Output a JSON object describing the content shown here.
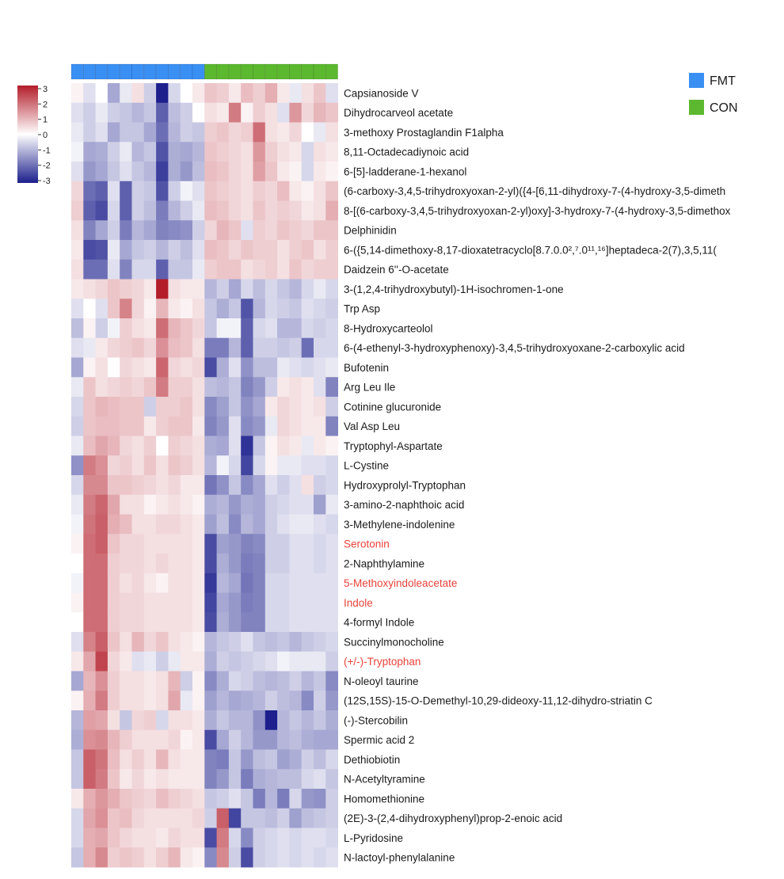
{
  "chart_data": {
    "type": "heatmap",
    "groups": [
      {
        "name": "FMT",
        "color": "#3a8ff3",
        "count": 11
      },
      {
        "name": "CON",
        "color": "#5cb82e",
        "count": 11
      }
    ],
    "color_scale": {
      "min": -3,
      "max": 3,
      "ticks": [
        "3",
        "2",
        "1",
        "0",
        "-1",
        "-2",
        "-3"
      ],
      "low_color": "#1c1f8c",
      "mid_color": "#ffffff",
      "high_color": "#b31d2a"
    },
    "highlight_color": "#e8433a",
    "rows": [
      {
        "label": "Capsianoside V",
        "highlight": false,
        "values": [
          0.1,
          -0.3,
          0.0,
          -1.0,
          -0.2,
          0.3,
          -0.5,
          -3.0,
          -0.4,
          0.0,
          0.2,
          0.6,
          0.5,
          0.2,
          0.7,
          0.5,
          0.9,
          0.2,
          -0.2,
          0.3,
          0.6,
          -0.3
        ]
      },
      {
        "label": "Dihydrocarveol acetate",
        "highlight": false,
        "values": [
          -0.3,
          -0.5,
          -0.2,
          -0.5,
          -0.6,
          -0.8,
          -0.6,
          -2.0,
          -0.7,
          -0.5,
          0.0,
          0.3,
          0.2,
          1.6,
          0.1,
          0.5,
          0.3,
          -0.3,
          1.2,
          0.4,
          0.8,
          0.6
        ]
      },
      {
        "label": "3-methoxy Prostaglandin F1alpha",
        "highlight": false,
        "values": [
          -0.2,
          -0.5,
          -0.3,
          -1.0,
          -0.6,
          -0.6,
          -1.0,
          -1.8,
          -0.8,
          -0.5,
          -0.6,
          0.5,
          0.6,
          0.4,
          0.5,
          1.8,
          0.3,
          0.2,
          0.4,
          0.0,
          -0.2,
          0.3
        ]
      },
      {
        "label": "8,11-Octadecadiynoic acid",
        "highlight": false,
        "values": [
          -0.1,
          -1.0,
          -0.9,
          -0.5,
          -0.2,
          -0.8,
          -0.6,
          -2.2,
          -0.9,
          -1.0,
          -0.8,
          0.6,
          0.5,
          0.4,
          0.3,
          1.2,
          0.5,
          0.3,
          0.2,
          -0.4,
          0.3,
          0.2
        ]
      },
      {
        "label": "6-[5]-ladderane-1-hexanol",
        "highlight": false,
        "values": [
          -0.3,
          -1.2,
          -1.0,
          -0.6,
          -0.3,
          -0.6,
          -0.8,
          -2.5,
          -0.9,
          -1.2,
          -0.7,
          0.7,
          0.6,
          0.4,
          0.3,
          1.1,
          0.6,
          0.2,
          0.1,
          -0.4,
          0.2,
          0.1
        ]
      },
      {
        "label": "(6-carboxy-3,4,5-trihydroxyoxan-2-yl)({4-[6,11-dihydroxy-7-(4-hydroxy-3,5-dimeth",
        "highlight": false,
        "values": [
          0.4,
          -1.8,
          -2.0,
          -0.3,
          -2.0,
          -0.5,
          -0.6,
          -2.2,
          -0.5,
          -0.1,
          -0.3,
          0.6,
          0.5,
          0.4,
          0.3,
          0.5,
          0.4,
          0.7,
          0.2,
          0.1,
          0.3,
          0.6
        ]
      },
      {
        "label": "8-[(6-carboxy-3,4,5-trihydroxyoxan-2-yl)oxy]-3-hydroxy-7-(4-hydroxy-3,5-dimethox",
        "highlight": false,
        "values": [
          0.5,
          -2.0,
          -2.3,
          -0.4,
          -2.0,
          -0.5,
          -0.7,
          -1.6,
          -0.8,
          -0.5,
          -0.2,
          0.7,
          0.6,
          0.4,
          0.3,
          0.6,
          0.4,
          0.5,
          0.4,
          0.2,
          0.3,
          0.9
        ]
      },
      {
        "label": "Delphinidin",
        "highlight": false,
        "values": [
          0.3,
          -1.5,
          -1.0,
          -0.5,
          -1.6,
          -0.8,
          -1.0,
          -1.5,
          -1.4,
          -1.3,
          -0.5,
          0.4,
          0.8,
          0.6,
          -0.3,
          0.5,
          0.4,
          0.6,
          0.5,
          0.4,
          0.6,
          0.6
        ]
      },
      {
        "label": "6-({5,14-dimethoxy-8,17-dioxatetracyclo[8.7.0.0²,⁷.0¹¹,¹⁶]heptadeca-2(7),3,5,11(",
        "highlight": false,
        "values": [
          0.2,
          -2.3,
          -2.2,
          -0.2,
          -1.0,
          -0.6,
          -0.5,
          -0.8,
          -0.5,
          -0.7,
          -0.3,
          0.7,
          0.6,
          0.4,
          0.6,
          0.5,
          0.5,
          0.3,
          0.5,
          0.6,
          0.3,
          0.5
        ]
      },
      {
        "label": "Daidzein 6''-O-acetate",
        "highlight": false,
        "values": [
          0.3,
          -1.8,
          -1.8,
          -0.3,
          -1.5,
          -0.4,
          -0.4,
          -2.0,
          -0.6,
          -0.6,
          -0.2,
          0.5,
          0.6,
          0.6,
          0.3,
          0.4,
          0.5,
          0.3,
          0.6,
          0.4,
          0.5,
          0.5
        ]
      },
      {
        "label": "3-(1,2,4-trihydroxybutyl)-1H-isochromen-1-one",
        "highlight": false,
        "values": [
          0.2,
          0.3,
          0.4,
          0.6,
          0.5,
          0.4,
          0.2,
          3.0,
          0.3,
          0.2,
          0.2,
          -0.8,
          -0.5,
          -1.0,
          -0.4,
          -0.7,
          -0.4,
          -0.6,
          -0.8,
          -0.4,
          -0.2,
          -0.4
        ]
      },
      {
        "label": "Trp Asp",
        "highlight": false,
        "values": [
          -0.3,
          0.0,
          -0.3,
          0.6,
          1.5,
          0.4,
          0.1,
          0.8,
          0.2,
          0.1,
          0.3,
          -0.6,
          -0.9,
          -0.6,
          -2.2,
          -0.8,
          -0.4,
          -0.5,
          -0.6,
          -0.3,
          -0.4,
          -0.5
        ]
      },
      {
        "label": "8-Hydroxycarteolol",
        "highlight": false,
        "values": [
          -0.7,
          0.1,
          -0.5,
          -0.1,
          0.5,
          0.3,
          0.2,
          1.8,
          0.8,
          0.6,
          0.4,
          -0.6,
          -0.1,
          -0.1,
          -2.0,
          -0.4,
          -0.3,
          -0.8,
          -0.8,
          -0.4,
          -0.5,
          -0.4
        ]
      },
      {
        "label": "6-(4-ethenyl-3-hydroxyphenoxy)-3,4,5-trihydroxyoxane-2-carboxylic acid",
        "highlight": false,
        "values": [
          -0.3,
          -0.2,
          0.2,
          0.4,
          0.5,
          0.6,
          0.4,
          1.3,
          0.7,
          0.6,
          0.3,
          -1.6,
          -1.6,
          -0.8,
          -2.0,
          -0.5,
          -0.5,
          -0.6,
          -0.5,
          -1.8,
          -0.4,
          -0.4
        ]
      },
      {
        "label": "Bufotenin",
        "highlight": false,
        "values": [
          -1.0,
          0.1,
          0.3,
          0.0,
          0.4,
          0.3,
          0.2,
          1.9,
          0.4,
          0.3,
          0.4,
          -2.3,
          -0.9,
          -0.3,
          -1.3,
          -0.7,
          -0.7,
          -0.2,
          -0.3,
          -0.4,
          -0.3,
          -0.2
        ]
      },
      {
        "label": "Arg Leu Ile",
        "highlight": false,
        "values": [
          -0.2,
          0.6,
          0.3,
          0.4,
          0.5,
          0.4,
          0.6,
          1.6,
          0.5,
          0.5,
          0.3,
          -0.7,
          -0.8,
          -0.6,
          -1.5,
          -1.2,
          -0.5,
          0.2,
          0.3,
          0.2,
          -0.3,
          -1.5
        ]
      },
      {
        "label": "Cotinine glucuronide",
        "highlight": false,
        "values": [
          -0.4,
          0.6,
          0.8,
          0.7,
          0.6,
          0.6,
          -0.5,
          0.5,
          0.5,
          0.6,
          0.3,
          -1.4,
          -1.1,
          -0.6,
          -1.3,
          -1.0,
          0.2,
          0.4,
          0.3,
          0.2,
          0.3,
          -0.5
        ]
      },
      {
        "label": "Val Asp Leu",
        "highlight": false,
        "values": [
          -0.5,
          0.6,
          0.7,
          0.7,
          0.6,
          0.6,
          0.2,
          0.5,
          0.6,
          0.6,
          0.2,
          -1.5,
          -1.2,
          -0.3,
          -1.4,
          -1.2,
          -0.2,
          0.4,
          0.3,
          0.2,
          0.2,
          -1.5
        ]
      },
      {
        "label": "Tryptophyl-Aspartate",
        "highlight": false,
        "values": [
          -0.2,
          0.7,
          1.0,
          0.8,
          0.4,
          0.3,
          0.5,
          0.0,
          0.5,
          0.4,
          0.3,
          -0.9,
          -1.0,
          -0.3,
          -2.7,
          -0.6,
          0.1,
          0.3,
          0.2,
          -0.2,
          0.2,
          0.1
        ]
      },
      {
        "label": "L-Cystine",
        "highlight": false,
        "values": [
          -1.3,
          1.6,
          1.3,
          0.4,
          0.5,
          0.3,
          0.6,
          0.3,
          0.6,
          0.5,
          0.3,
          -0.8,
          -0.1,
          -0.4,
          -2.4,
          -0.4,
          0.1,
          -0.2,
          -0.2,
          -0.3,
          -0.3,
          -0.4
        ]
      },
      {
        "label": "Hydroxyprolyl-Tryptophan",
        "highlight": false,
        "values": [
          -0.4,
          1.4,
          1.4,
          0.6,
          0.6,
          0.5,
          0.4,
          0.3,
          0.4,
          0.2,
          0.2,
          -1.7,
          -1.3,
          -0.6,
          -1.4,
          -1.0,
          -0.3,
          -0.5,
          -0.3,
          0.3,
          -0.5,
          -0.4
        ]
      },
      {
        "label": "3-amino-2-naphthoic acid",
        "highlight": false,
        "values": [
          -0.2,
          1.6,
          1.9,
          1.0,
          0.3,
          0.3,
          0.1,
          0.2,
          0.3,
          0.2,
          0.1,
          -0.9,
          -0.8,
          -1.2,
          -0.9,
          -1.0,
          -0.5,
          -0.4,
          -0.3,
          -0.3,
          -1.1,
          -0.2
        ]
      },
      {
        "label": "3-Methylene-indolenine",
        "highlight": false,
        "values": [
          -0.1,
          1.7,
          2.0,
          0.9,
          0.7,
          0.3,
          0.3,
          0.4,
          0.4,
          0.3,
          0.2,
          -1.1,
          -0.7,
          -1.4,
          -0.8,
          -1.0,
          -0.5,
          -0.3,
          -0.2,
          -0.2,
          -0.3,
          -0.4
        ]
      },
      {
        "label": "Serotonin",
        "highlight": true,
        "values": [
          0.1,
          1.8,
          2.0,
          0.6,
          0.4,
          0.4,
          0.3,
          0.3,
          0.3,
          0.3,
          0.2,
          -2.3,
          -1.1,
          -1.2,
          -1.5,
          -1.4,
          -0.5,
          -0.5,
          -0.3,
          -0.3,
          -0.4,
          -0.3
        ]
      },
      {
        "label": "2-Naphthylamine",
        "highlight": false,
        "values": [
          0.0,
          1.8,
          1.8,
          0.5,
          0.4,
          0.4,
          0.3,
          0.4,
          0.3,
          0.3,
          0.2,
          -2.3,
          -0.9,
          -1.2,
          -1.6,
          -1.5,
          -0.5,
          -0.5,
          -0.3,
          -0.3,
          -0.4,
          -0.3
        ]
      },
      {
        "label": "5-Methoxyindoleacetate",
        "highlight": true,
        "values": [
          -0.1,
          1.8,
          1.8,
          0.5,
          0.3,
          0.4,
          0.2,
          0.1,
          0.3,
          0.3,
          0.2,
          -2.6,
          -0.8,
          -1.0,
          -1.7,
          -1.5,
          -0.4,
          -0.4,
          -0.3,
          -0.3,
          -0.3,
          -0.3
        ]
      },
      {
        "label": "Indole",
        "highlight": true,
        "values": [
          0.1,
          1.8,
          1.8,
          0.5,
          0.4,
          0.4,
          0.3,
          0.3,
          0.3,
          0.3,
          0.2,
          -2.4,
          -1.0,
          -1.2,
          -1.6,
          -1.5,
          -0.4,
          -0.4,
          -0.3,
          -0.3,
          -0.3,
          -0.3
        ]
      },
      {
        "label": "4-formyl Indole",
        "highlight": false,
        "values": [
          0.0,
          1.8,
          1.8,
          0.5,
          0.4,
          0.4,
          0.3,
          0.3,
          0.3,
          0.3,
          0.2,
          -2.3,
          -0.9,
          -1.2,
          -1.5,
          -1.5,
          -0.4,
          -0.4,
          -0.3,
          -0.3,
          -0.3,
          -0.3
        ]
      },
      {
        "label": "Succinylmonocholine",
        "highlight": false,
        "values": [
          -0.3,
          1.5,
          2.0,
          0.6,
          0.3,
          0.8,
          0.4,
          0.6,
          0.3,
          0.2,
          0.1,
          -0.8,
          -0.6,
          -0.5,
          -0.3,
          -0.6,
          -0.7,
          -0.6,
          -0.8,
          -0.6,
          -0.5,
          -0.4
        ]
      },
      {
        "label": "(+/-)-Tryptophan",
        "highlight": true,
        "values": [
          0.2,
          1.0,
          2.4,
          0.4,
          0.2,
          -0.3,
          -0.2,
          -0.5,
          -0.2,
          0.2,
          0.2,
          -0.9,
          -0.5,
          -0.6,
          -0.5,
          -0.4,
          -0.3,
          -0.1,
          -0.2,
          -0.2,
          -0.2,
          -0.5
        ]
      },
      {
        "label": "N-oleoyl taurine",
        "highlight": false,
        "values": [
          -1.0,
          0.8,
          1.3,
          0.5,
          0.3,
          0.3,
          0.2,
          0.3,
          0.8,
          -0.5,
          0.1,
          -1.4,
          -0.9,
          -0.4,
          -0.5,
          -0.7,
          -0.8,
          -0.7,
          -0.5,
          -0.8,
          -0.6,
          -1.4
        ]
      },
      {
        "label": "(12S,15S)-15-O-Demethyl-10,29-dideoxy-11,12-dihydro-striatin C",
        "highlight": false,
        "values": [
          0.1,
          0.9,
          1.6,
          0.5,
          0.3,
          0.3,
          0.2,
          0.3,
          1.0,
          -0.2,
          0.1,
          -1.1,
          -0.8,
          -1.0,
          -0.9,
          -0.8,
          -0.5,
          -0.7,
          -0.8,
          -1.4,
          -0.5,
          -1.2
        ]
      },
      {
        "label": "(-)-Stercobilin",
        "highlight": false,
        "values": [
          -0.8,
          1.1,
          1.0,
          0.3,
          -0.6,
          0.4,
          0.5,
          -0.4,
          0.3,
          0.3,
          0.2,
          -0.9,
          -0.6,
          -0.8,
          -0.8,
          -1.3,
          -3.0,
          -0.8,
          -0.6,
          -0.8,
          -0.6,
          -0.9
        ]
      },
      {
        "label": "Spermic acid 2",
        "highlight": false,
        "values": [
          -0.9,
          1.3,
          1.4,
          0.8,
          0.5,
          0.3,
          0.3,
          0.3,
          0.4,
          0.1,
          0.2,
          -2.3,
          -1.0,
          -0.5,
          -0.8,
          -1.2,
          -1.2,
          -0.8,
          -0.7,
          -0.9,
          -1.0,
          -1.0
        ]
      },
      {
        "label": "Dethiobiotin",
        "highlight": false,
        "values": [
          -0.6,
          2.0,
          1.7,
          0.7,
          0.3,
          0.5,
          0.3,
          0.8,
          0.3,
          0.2,
          0.2,
          -1.5,
          -1.6,
          -0.6,
          -1.2,
          -0.7,
          -0.6,
          -1.1,
          -0.9,
          -0.5,
          -0.7,
          -0.4
        ]
      },
      {
        "label": "N-Acetyltyramine",
        "highlight": false,
        "values": [
          -0.6,
          2.0,
          1.6,
          0.6,
          0.2,
          0.4,
          0.2,
          0.3,
          0.2,
          0.2,
          0.2,
          -1.5,
          -1.2,
          -0.6,
          -1.6,
          -0.9,
          -0.8,
          -0.7,
          -0.7,
          -0.4,
          -0.3,
          -0.6
        ]
      },
      {
        "label": "Homomethionine",
        "highlight": false,
        "values": [
          0.2,
          0.9,
          1.2,
          0.9,
          0.6,
          0.5,
          0.4,
          0.7,
          0.5,
          0.4,
          0.3,
          -0.6,
          -0.5,
          -0.3,
          -0.6,
          -1.6,
          -0.8,
          -1.6,
          -0.4,
          -1.2,
          -1.3,
          -0.5
        ]
      },
      {
        "label": "(2E)-3-(2,4-dihydroxyphenyl)prop-2-enoic acid",
        "highlight": false,
        "values": [
          -0.4,
          1.0,
          1.3,
          0.6,
          0.7,
          0.4,
          0.3,
          0.3,
          0.3,
          0.3,
          0.4,
          -0.5,
          2.0,
          -2.4,
          -0.6,
          -0.6,
          -0.7,
          -0.5,
          -1.1,
          -0.7,
          -0.6,
          -0.5
        ]
      },
      {
        "label": "L-Pyridosine",
        "highlight": false,
        "values": [
          -0.4,
          0.9,
          1.0,
          0.6,
          0.4,
          0.3,
          0.3,
          0.2,
          0.4,
          0.3,
          0.3,
          -2.3,
          1.6,
          -0.4,
          -1.4,
          -0.5,
          -0.4,
          -0.3,
          -0.4,
          -0.3,
          -0.3,
          -0.4
        ]
      },
      {
        "label": "N-lactoyl-phenylalanine",
        "highlight": false,
        "values": [
          -0.6,
          0.9,
          1.4,
          0.5,
          0.6,
          0.5,
          0.3,
          0.5,
          0.8,
          0.2,
          0.1,
          -1.4,
          1.4,
          -0.5,
          -2.3,
          -0.5,
          -0.4,
          -0.3,
          -0.4,
          -0.3,
          -0.4,
          -0.3
        ]
      }
    ]
  }
}
